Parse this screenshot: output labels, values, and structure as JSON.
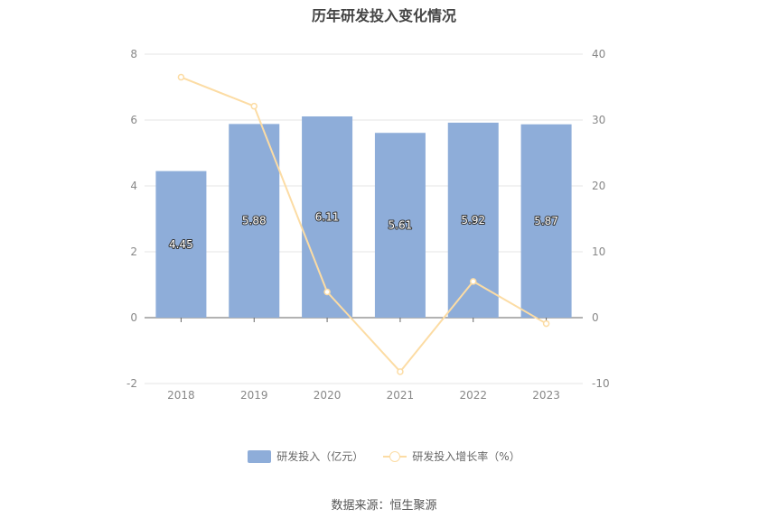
{
  "chart_data": {
    "type": "bar+line",
    "title": "历年研发投入变化情况",
    "categories": [
      "2018",
      "2019",
      "2020",
      "2021",
      "2022",
      "2023"
    ],
    "series": [
      {
        "name": "研发投入（亿元）",
        "type": "bar",
        "axis": "left",
        "values": [
          4.45,
          5.88,
          6.11,
          5.61,
          5.92,
          5.87
        ],
        "color": "#8eadd9"
      },
      {
        "name": "研发投入增长率（%）",
        "type": "line",
        "axis": "right",
        "values": [
          36.5,
          32.1,
          3.9,
          -8.2,
          5.5,
          -0.9
        ],
        "color": "#fcdca4"
      }
    ],
    "y_left": {
      "min": -2,
      "max": 8,
      "ticks": [
        "-2",
        "0",
        "2",
        "4",
        "6",
        "8"
      ]
    },
    "y_right": {
      "min": -10,
      "max": 40,
      "ticks": [
        "-10",
        "0",
        "10",
        "20",
        "30",
        "40"
      ]
    },
    "grid": true,
    "legend_position": "bottom"
  },
  "legend": {
    "bar_label": "研发投入（亿元）",
    "line_label": "研发投入增长率（%）"
  },
  "source_text": "数据来源：恒生聚源"
}
